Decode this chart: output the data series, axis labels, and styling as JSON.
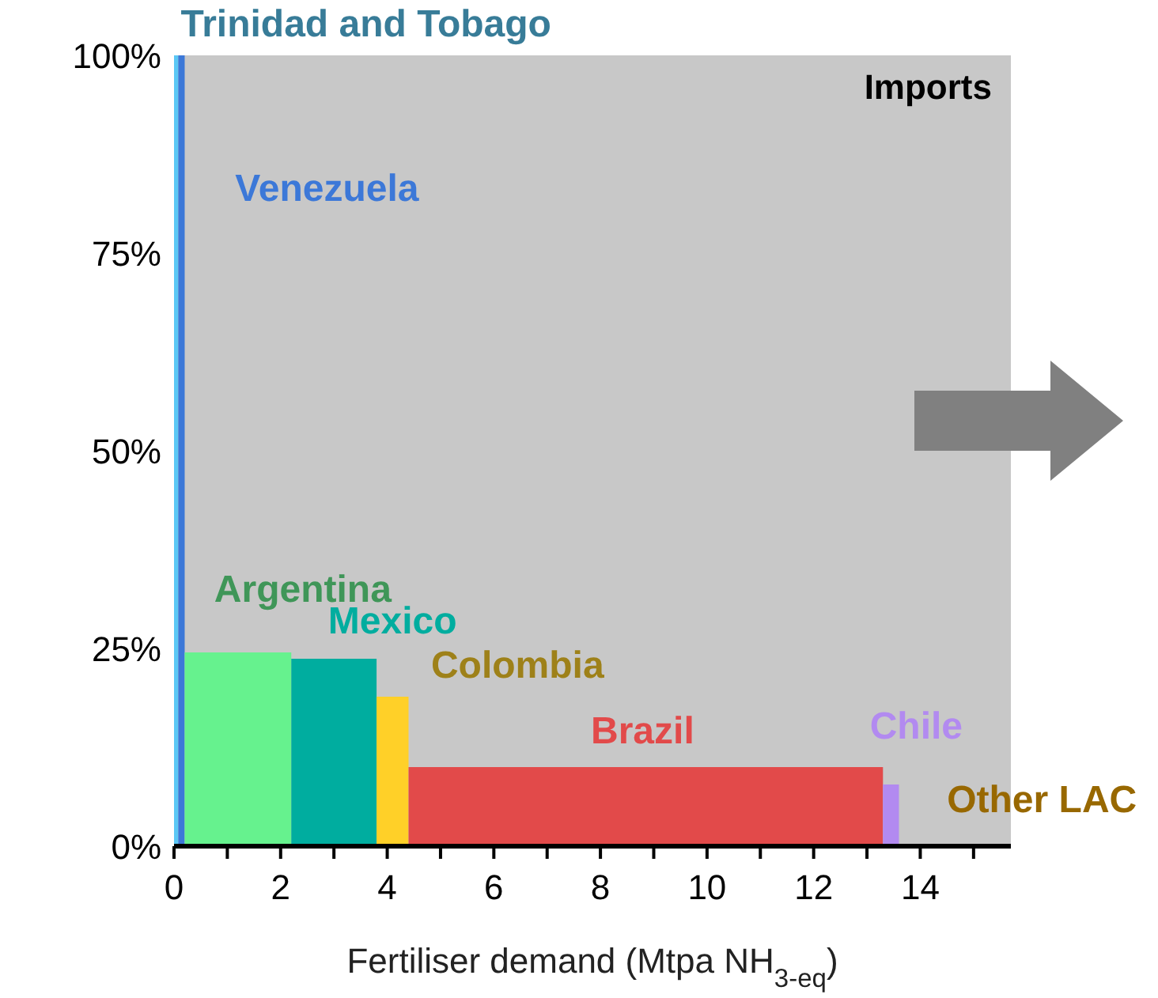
{
  "chart_data": {
    "type": "histogram",
    "xlabel": "Fertiliser demand (Mtpa NH$_{3-eq}$)",
    "bins": [
      0,
      0.08,
      0.2,
      2.2,
      3.8,
      4.4,
      13.3,
      13.6,
      15.7
    ],
    "values": [
      100,
      100,
      24.5,
      23.7,
      18.9,
      10,
      7.8,
      0.3
    ],
    "colors": [
      "#5bc8f5",
      "#3c78d8",
      "#66f28e",
      "#00ad9f",
      "#ffd028",
      "#e24a4a",
      "#b28af0",
      "#f5a800"
    ],
    "categories": [
      "Trinidad and Tobago",
      "Venezuela",
      "Argentina",
      "Mexico",
      "Colombia",
      "Brazil",
      "Chile",
      "Other LAC"
    ],
    "bands": [
      {
        "axis": "y",
        "from": 0,
        "to": 100,
        "label": "Imports",
        "color": "#c8c8c8"
      }
    ],
    "xlim": [
      0,
      15.7
    ],
    "xticks": [
      0,
      {
        "value": 1,
        "label": null
      },
      2,
      {
        "value": 3,
        "label": null
      },
      4,
      {
        "value": 5,
        "label": null
      },
      6,
      {
        "value": 7,
        "label": null
      },
      8,
      {
        "value": 9,
        "label": null
      },
      10,
      {
        "value": 11,
        "label": null
      },
      12,
      {
        "value": 13,
        "label": null
      },
      14,
      {
        "value": 15,
        "label": null
      }
    ],
    "ylim": [
      0,
      100
    ],
    "yticks": [
      {
        "value": 0,
        "label": "0%"
      },
      {
        "value": 25,
        "label": "25%"
      },
      {
        "value": 50,
        "label": "50%"
      },
      {
        "value": 75,
        "label": "75%"
      },
      {
        "value": 100,
        "label": "100%"
      }
    ],
    "grid": false
  }
}
